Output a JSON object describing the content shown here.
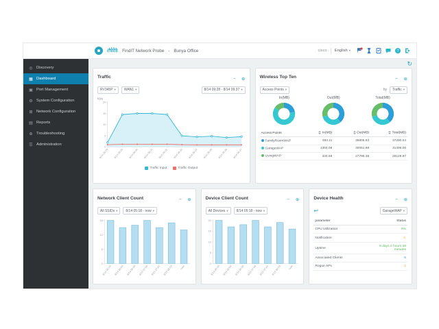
{
  "colors": {
    "accent": "#2aa5c0",
    "sidebar_bg": "#2e3134",
    "sidebar_active": "#0f7fae",
    "main_bg": "#eef1f2"
  },
  "header": {
    "logo_text": "cisco",
    "title": "FindIT Network Probe",
    "separator": "-",
    "location": "Bunya Office",
    "brand": "cisco",
    "language": "English",
    "icons": [
      {
        "name": "notifications-flag-icon",
        "type": "flag"
      },
      {
        "name": "pending-activity-icon",
        "type": "hourglass"
      },
      {
        "name": "jobs-icon",
        "type": "tasks"
      },
      {
        "name": "chat-icon",
        "type": "chat"
      },
      {
        "name": "feedback-icon",
        "type": "help"
      },
      {
        "name": "logout-icon",
        "type": "logout"
      }
    ]
  },
  "sidebar": {
    "items": [
      {
        "label": "Discovery",
        "icon": "discovery",
        "active": false
      },
      {
        "label": "Dashboard",
        "icon": "dashboard",
        "active": true
      },
      {
        "label": "Port Management",
        "icon": "ports",
        "active": false
      },
      {
        "label": "System Configuration",
        "icon": "system",
        "active": false
      },
      {
        "label": "Network Configuration",
        "icon": "network",
        "active": false
      },
      {
        "label": "Reports",
        "icon": "reports",
        "active": false
      },
      {
        "label": "Troubleshooting",
        "icon": "troubleshooting",
        "active": false
      },
      {
        "label": "Administration",
        "icon": "administration",
        "active": false
      }
    ]
  },
  "widget_controls": {
    "minimize": "−",
    "expand": "⊕"
  },
  "widgets": {
    "traffic": {
      "title": "Traffic",
      "filters": {
        "device": "RV345P",
        "interface": "WAN1",
        "range": "8/14 09:28 - 8/14 09:37"
      },
      "ylabel": "Kb/s",
      "chart_data": {
        "type": "area",
        "x": [
          "8/14 09:28",
          "8/14 09:29",
          "8/14 09:30",
          "8/14 09:31",
          "8/14 09:32",
          "8/14 09:33",
          "8/14 09:34",
          "8/14 09:35",
          "8/14 09:36",
          "8/14 09:37"
        ],
        "series": [
          {
            "name": "Traffic Input",
            "color": "#35b8d8",
            "fill": "#d8f0f8",
            "values": [
              2,
              14.5,
              15,
              15,
              14.5,
              5,
              4.5,
              4.8,
              4.2,
              4.6
            ]
          },
          {
            "name": "Traffic Output",
            "color": "#f2706c",
            "values": [
              1,
              1.2,
              1.2,
              1.2,
              1.2,
              1,
              0.9,
              0.9,
              0.9,
              0.9
            ]
          }
        ],
        "ylim": [
          0,
          20
        ],
        "yticks": [
          0,
          5,
          10,
          15,
          20
        ]
      }
    },
    "wireless": {
      "title": "Wireless Top Ten",
      "filters": {
        "group": "Access Points",
        "by_label": "by",
        "metric": "Traffic"
      },
      "chart_data": {
        "type": "pie",
        "donut_labels": [
          "In(MB)",
          "Out(MB)",
          "Total(MB)"
        ],
        "colors": [
          "#2d9fd8",
          "#35c7d2",
          "#67bd6a"
        ],
        "series": [
          [
            484.11,
            1354.08,
            334.59
          ],
          [
            36805.93,
            30051.98,
            27795.38
          ],
          [
            37290.04,
            31406.06,
            28129.97
          ]
        ]
      },
      "table": {
        "headers": [
          "Access Points",
          "In(MB)",
          "Out(MB)",
          "Total(MB)"
        ],
        "rows": [
          {
            "name": "FamilyRoomWAP",
            "values": [
              "484.11",
              "36805.93",
              "37290.04"
            ]
          },
          {
            "name": "GarageWAP",
            "values": [
              "1354.08",
              "30051.98",
              "31406.06"
            ]
          },
          {
            "name": "LivingWAP",
            "values": [
              "334.59",
              "27795.38",
              "28129.97"
            ]
          }
        ]
      }
    },
    "network_clients": {
      "title": "Network Client Count",
      "filters": {
        "ssid": "All SSIDs",
        "range": "8/14 05:18 - now"
      },
      "chart_data": {
        "type": "bar",
        "categories": [
          "8/14 05:18",
          "8/14 05:54",
          "8/14 06:30",
          "8/14 07:06",
          "8/14 07:42",
          "8/14 08:18",
          "now"
        ],
        "values": [
          18,
          15,
          16,
          18,
          15,
          17,
          14
        ],
        "ylim": [
          0,
          18
        ],
        "yticks": [
          0,
          6,
          12,
          18
        ],
        "bar_color": "#b5def0",
        "bar_border": "#6fb8d8"
      }
    },
    "device_clients": {
      "title": "Device Client Count",
      "filters": {
        "device": "All Devices",
        "range": "8/14 05:18 - now"
      },
      "chart_data": {
        "type": "bar",
        "categories": [
          "8/14 05:18",
          "8/14 05:54",
          "8/14 06:30",
          "8/14 07:06",
          "8/14 07:42",
          "8/14 08:18",
          "now"
        ],
        "values": [
          20,
          17,
          18,
          20,
          17,
          19,
          16
        ],
        "ylim": [
          0,
          20
        ],
        "yticks": [
          0,
          5,
          10,
          15,
          20
        ],
        "bar_color": "#b5def0",
        "bar_border": "#6fb8d8"
      }
    },
    "device_health": {
      "title": "Device Health",
      "filter": "GarageWAP",
      "table": {
        "headers": [
          "parameter",
          "Status"
        ],
        "rows": [
          {
            "param": "CPU Utilization",
            "status": "6%",
            "status_color": "#5cb85c"
          },
          {
            "param": "Notification",
            "status": "⚠",
            "status_color": "#f0ad4e"
          },
          {
            "param": "Uptime",
            "status": "6 days 2 hours 28 minutes",
            "status_color": "#5cb85c"
          },
          {
            "param": "Associated Clients",
            "status": "6",
            "status_color": "#2aa5c0"
          },
          {
            "param": "Rogue APs",
            "status": "2",
            "status_color": "#f0ad4e"
          }
        ]
      }
    }
  }
}
